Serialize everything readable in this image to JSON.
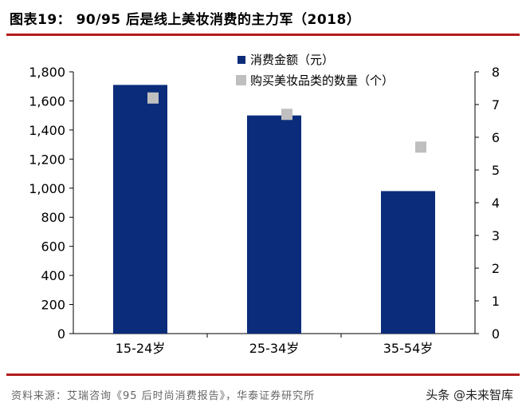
{
  "header": {
    "title": "图表19：  90/95 后是线上美妆消费的主力军（2018）"
  },
  "chart_data": {
    "type": "bar",
    "categories": [
      "15-24岁",
      "25-34岁",
      "35-54岁"
    ],
    "series": [
      {
        "name": "消费金额（元）",
        "kind": "bar",
        "axis": "left",
        "color": "#0b2c7a",
        "values": [
          1710,
          1500,
          980
        ]
      },
      {
        "name": "购买美妆品类的数量（个）",
        "kind": "marker",
        "axis": "right",
        "color": "#bfbfbf",
        "values": [
          7.2,
          6.7,
          5.7
        ]
      }
    ],
    "ylim": [
      0,
      1800
    ],
    "y_ticks": [
      "0",
      "200",
      "400",
      "600",
      "800",
      "1,000",
      "1,200",
      "1,400",
      "1,600",
      "1,800"
    ],
    "y2lim": [
      0,
      8
    ],
    "y2_ticks": [
      "0",
      "1",
      "2",
      "3",
      "4",
      "5",
      "6",
      "7",
      "8"
    ],
    "grid": false,
    "legend_position": "top-right"
  },
  "footer": {
    "source": "资料来源：艾瑞咨询《95 后时尚消费报告》，华泰证券研究所",
    "watermark": "头条 @未来智库"
  }
}
